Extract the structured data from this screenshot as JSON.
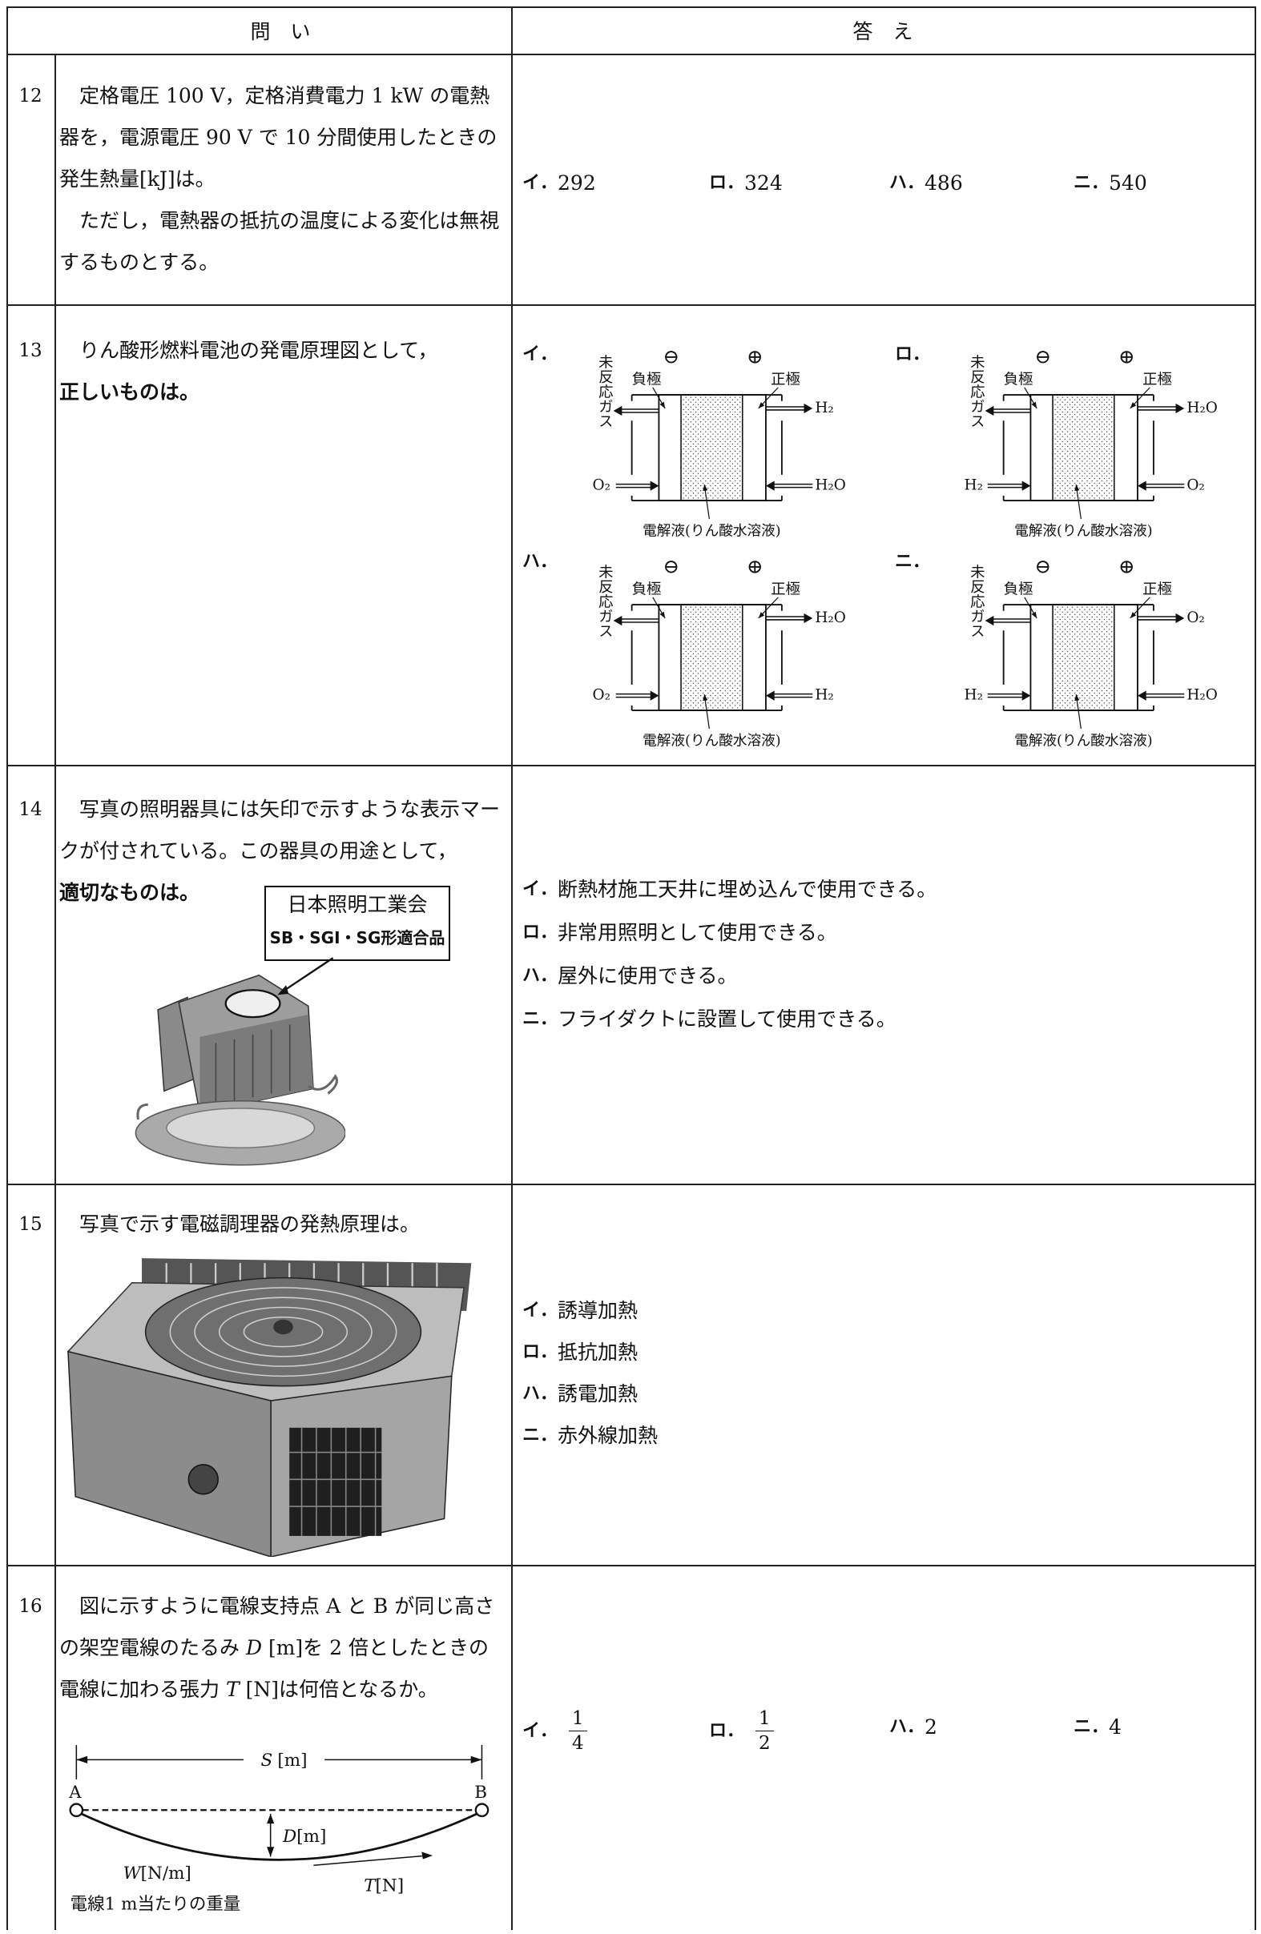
{
  "header": {
    "question": "問　い",
    "answer": "答　え"
  },
  "questions": [
    {
      "number": "12",
      "text": [
        [
          {
            "text": "　定格電圧 100 V，定格消費電力 1 kW の電熱器を，電源電圧 90 V で 10 分間使用したときの発生熱量[kJ]は。"
          }
        ],
        [
          {
            "text": "　ただし，電熱器の抵抗の温度による変化は無視するものとする。"
          }
        ]
      ],
      "options": [
        {
          "label": "イ．",
          "text": "292"
        },
        {
          "label": "ロ．",
          "text": "324"
        },
        {
          "label": "ハ．",
          "text": "486"
        },
        {
          "label": "ニ．",
          "text": "540"
        }
      ]
    },
    {
      "number": "13",
      "text": [
        [
          {
            "text": "　りん酸形燃料電池の発電原理図として，"
          }
        ],
        [
          {
            "text": "正しいものは。",
            "bold": true
          }
        ]
      ],
      "diagram_labels": {
        "side_gas": "未反応ガス",
        "minus": "⊖",
        "plus": "⊕",
        "negative": "負極",
        "positive": "正極",
        "electrolyte": "電解液(りん酸水溶液)"
      },
      "options": [
        {
          "label": "イ．",
          "left_in": "O₂",
          "right_out": "H₂",
          "right_in": "H₂O"
        },
        {
          "label": "ロ．",
          "left_in": "H₂",
          "right_out": "H₂O",
          "right_in": "O₂"
        },
        {
          "label": "ハ．",
          "left_in": "O₂",
          "right_out": "H₂O",
          "right_in": "H₂"
        },
        {
          "label": "ニ．",
          "left_in": "H₂",
          "right_out": "O₂",
          "right_in": "H₂O"
        }
      ]
    },
    {
      "number": "14",
      "text": [
        [
          {
            "text": "　写真の照明器具には矢印で示すような表示マークが付されている。この器具の用途として，"
          }
        ],
        [
          {
            "text": "適切なものは。",
            "bold": true
          }
        ]
      ],
      "mark": [
        "日本照明工業会",
        "SB・SGI・SG形適合品"
      ],
      "options": [
        {
          "label": "イ．",
          "text": "断熱材施工天井に埋め込んで使用できる。"
        },
        {
          "label": "ロ．",
          "text": "非常用照明として使用できる。"
        },
        {
          "label": "ハ．",
          "text": "屋外に使用できる。"
        },
        {
          "label": "ニ．",
          "text": "フライダクトに設置して使用できる。"
        }
      ]
    },
    {
      "number": "15",
      "text": [
        [
          {
            "text": "　写真で示す電磁調理器の発熱原理は。"
          }
        ]
      ],
      "options": [
        {
          "label": "イ．",
          "text": "誘導加熱"
        },
        {
          "label": "ロ．",
          "text": "抵抗加熱"
        },
        {
          "label": "ハ．",
          "text": "誘電加熱"
        },
        {
          "label": "ニ．",
          "text": "赤外線加熱"
        }
      ]
    },
    {
      "number": "16",
      "text": [
        [
          {
            "text": "　図に示すように電線支持点 A と B が同じ高さの架空電線のたるみ "
          },
          {
            "text": "D",
            "italic": true
          },
          {
            "text": " [m]を 2 倍としたときの電線に加わる張力 "
          },
          {
            "text": "T",
            "italic": true
          },
          {
            "text": " [N]は何倍となるか。"
          }
        ]
      ],
      "diagram": {
        "span": {
          "symbol": "S",
          "unit": "[m]"
        },
        "point_a": "A",
        "point_b": "B",
        "sag": {
          "symbol": "D",
          "unit": "[m]"
        },
        "weight": {
          "symbol": "W",
          "unit": "[N/m]"
        },
        "weight_note": "電線1 m当たりの重量",
        "tension": {
          "symbol": "T",
          "unit": "[N]"
        }
      },
      "options": [
        {
          "label": "イ．",
          "numerator": "1",
          "denominator": "4"
        },
        {
          "label": "ロ．",
          "numerator": "1",
          "denominator": "2"
        },
        {
          "label": "ハ．",
          "text": "2"
        },
        {
          "label": "ニ．",
          "text": "4"
        }
      ]
    }
  ]
}
